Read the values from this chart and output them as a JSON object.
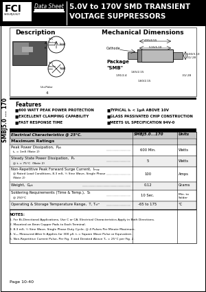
{
  "title_line1": "5.0V to 170V SMD TRANSIENT",
  "title_line2": "VOLTAGE SUPPRESSORS",
  "datasheet_label": "Data Sheet",
  "side_label": "SMBJ5.0 ... 170",
  "features_title": "Features",
  "features_left": [
    "600 WATT PEAK POWER PROTECTION",
    "EXCELLENT CLAMPING CAPABILITY",
    "FAST RESPONSE TIME"
  ],
  "features_right": [
    "TYPICAL Iₖ < 1μA ABOVE 10V",
    "GLASS PASSIVATED CHIP CONSTRUCTION",
    "MEETS UL SPECIFICATION 94V-0"
  ],
  "table_header_left": "Electrical Characteristics @ 25°C.",
  "table_header_mid": "SMBJ5.0...170",
  "table_header_right": "Units",
  "max_ratings_label": "Maximum Ratings",
  "row1_name": "Peak Power Dissipation,  Pₚₖ",
  "row1_sub": "  tₚ = 1mS (Note 2)",
  "row1_val": "600 Min.",
  "row1_unit": "Watts",
  "row2_name": "Steady State Power Dissipation,  Pₑ",
  "row2_sub": "  @ tₗ = 75°C  (Note 2)",
  "row2_val": "5",
  "row2_unit": "Watts",
  "row3_name": "Non-Repetitive Peak Forward Surge Current,  Iₘₙₚ",
  "row3_sub1": "  @ Rated Load Conditions, 8.3 mS, ½ Sine Wave, Single Phase",
  "row3_sub2": "  (Note 2)",
  "row3_val": "100",
  "row3_unit": "Amps",
  "row4_name": "Weight,  Gₚₖ",
  "row4_val": "0.12",
  "row4_unit": "Grams",
  "row5_name": "Soldering Requirements (Time & Temp.),  Sₜ",
  "row5_sub": "  @ 250°C",
  "row5_val": "10 Sec.",
  "row5_unit": "Min. to\nSolder",
  "row6_name": "Operating & Storage Temperature Range,  T, Tₛₜᴳ",
  "row6_val": "-65 to 175",
  "row6_unit": "°C",
  "notes_header": "NOTES:",
  "note1": "1. For Bi-Directional Applications, Use C or CA. Electrical Characteristics Apply in Both Directions.",
  "note2": "2. Mounted on 8mm Copper Pads to Each Terminal.",
  "note3": "3. 8.3 mS, ½ Sine Wave, Single Phase Duty Cycle, @ 4 Pulses Per Minute Maximum.",
  "note4": "4. Vₘₙ Measured After It Applies for 300 μS. tₗ = Square Wave Pulse or Equivalent.",
  "note5": "5. Non-Repetitive Current Pulse, Per Fig. 3 and Derated Above Tₑ = 25°C per Fig. 2.",
  "page_label": "Page 10-40",
  "bg_color": "#ffffff",
  "black": "#000000",
  "gray_header": "#c8c8c8",
  "gray_section": "#d8d8d8",
  "gray_row": "#eeeeee"
}
